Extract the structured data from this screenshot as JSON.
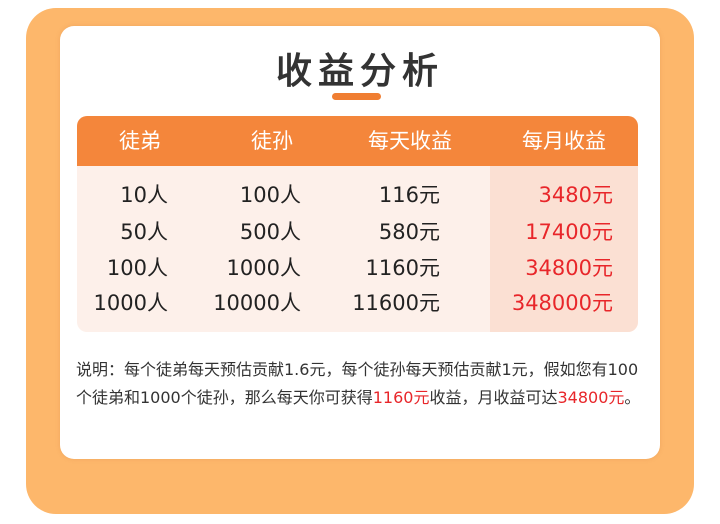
{
  "title": "收益分析",
  "colors": {
    "frame": "#fdb76b",
    "header": "#f4863b",
    "accent_red": "#e8262a",
    "table_bg": "#fdf0ea",
    "highlight_bg": "#fbe0d3"
  },
  "table": {
    "headers": [
      "徒弟",
      "徒孙",
      "每天收益",
      "每月收益"
    ],
    "rows": [
      [
        "10人",
        "100人",
        "116元",
        "3480元"
      ],
      [
        "50人",
        "500人",
        "580元",
        "17400元"
      ],
      [
        "100人",
        "1000人",
        "1160元",
        "34800元"
      ],
      [
        "1000人",
        "10000人",
        "11600元",
        "348000元"
      ]
    ]
  },
  "note": {
    "part1": "说明：每个徒弟每天预估贡献1.6元，每个徒孙每天预估贡献1元，假如您有100个徒弟和1000个徒孙，那么每天你可获得",
    "highlight1": "1160元",
    "part2": "收益，月收益可达",
    "highlight2": "34800元",
    "part3": "。"
  }
}
